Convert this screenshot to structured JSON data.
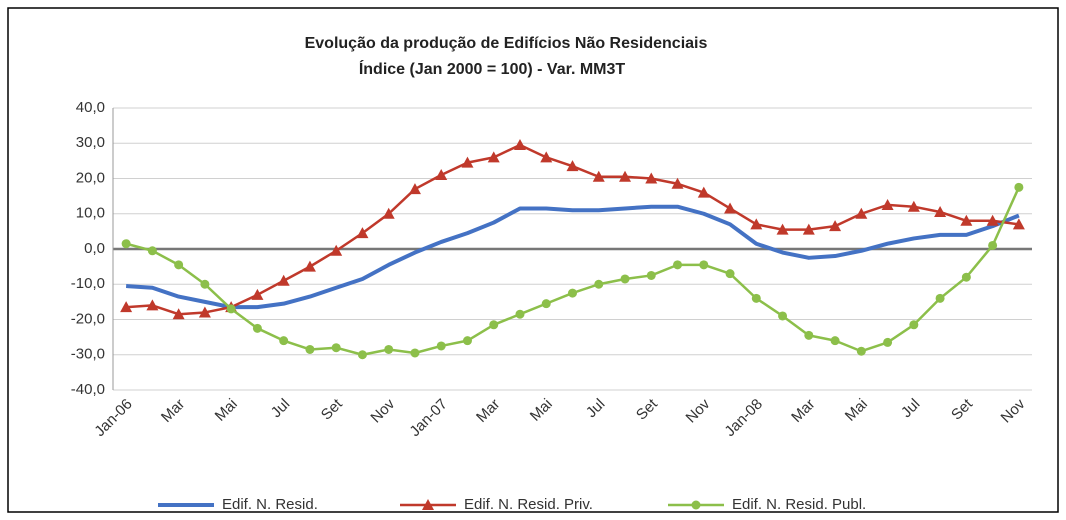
{
  "chart_data": {
    "type": "line",
    "title": "Evolução da produção de Edifícios Não Residenciais",
    "subtitle": "Índice (Jan 2000 = 100) -  Var. MM3T",
    "categories": [
      "Jan-06",
      null,
      "Mar",
      null,
      "Mai",
      null,
      "Jul",
      null,
      "Set",
      null,
      "Nov",
      null,
      "Jan-07",
      null,
      "Mar",
      null,
      "Mai",
      null,
      "Jul",
      null,
      "Set",
      null,
      "Nov",
      null,
      "Jan-08",
      null,
      "Mar",
      null,
      "Mai",
      null,
      "Jul",
      null,
      "Set",
      null,
      "Nov"
    ],
    "series": [
      {
        "name": "Edif. N. Resid.",
        "color": "#4472c4",
        "marker": "none",
        "values": [
          -10.5,
          -11,
          -13.5,
          -15,
          -16.5,
          -16.5,
          -15.5,
          -13.5,
          -11,
          -8.5,
          -4.5,
          -1,
          2,
          4.5,
          7.5,
          11.5,
          11.5,
          11,
          11,
          11.5,
          12,
          12,
          10,
          7,
          1.5,
          -1,
          -2.5,
          -2,
          -0.5,
          1.5,
          3,
          4,
          4,
          6.5,
          9.5
        ]
      },
      {
        "name": "Edif. N. Resid. Priv.",
        "color": "#c0392b",
        "marker": "triangle",
        "values": [
          -16.5,
          -16,
          -18.5,
          -18,
          -16.5,
          -13,
          -9,
          -5,
          -0.5,
          4.5,
          10,
          17,
          21,
          24.5,
          26,
          29.5,
          26,
          23.5,
          20.5,
          20.5,
          20,
          18.5,
          16,
          11.5,
          7,
          5.5,
          5.5,
          6.5,
          10,
          12.5,
          12,
          10.5,
          8,
          8,
          7
        ]
      },
      {
        "name": "Edif. N. Resid. Publ.",
        "color": "#8cbf4a",
        "marker": "circle",
        "values": [
          1.5,
          -0.5,
          -4.5,
          -10,
          -17,
          -22.5,
          -26,
          -28.5,
          -28,
          -30,
          -28.5,
          -29.5,
          -27.5,
          -26,
          -21.5,
          -18.5,
          -15.5,
          -12.5,
          -10,
          -8.5,
          -7.5,
          -4.5,
          -4.5,
          -7,
          -14,
          -19,
          -24.5,
          -26,
          -29,
          -26.5,
          -21.5,
          -14,
          -8,
          1,
          17.5
        ]
      }
    ],
    "ylim": [
      -40,
      40
    ],
    "yticks": [
      {
        "value": -40,
        "label": "-40,0"
      },
      {
        "value": -30,
        "label": "-30,0"
      },
      {
        "value": -20,
        "label": "-20,0"
      },
      {
        "value": -10,
        "label": "-10,0"
      },
      {
        "value": 0,
        "label": "0,0"
      },
      {
        "value": 10,
        "label": "10,0"
      },
      {
        "value": 20,
        "label": "20,0"
      },
      {
        "value": 30,
        "label": "30,0"
      },
      {
        "value": 40,
        "label": "40,0"
      }
    ],
    "grid": true,
    "legend": "bottom"
  }
}
